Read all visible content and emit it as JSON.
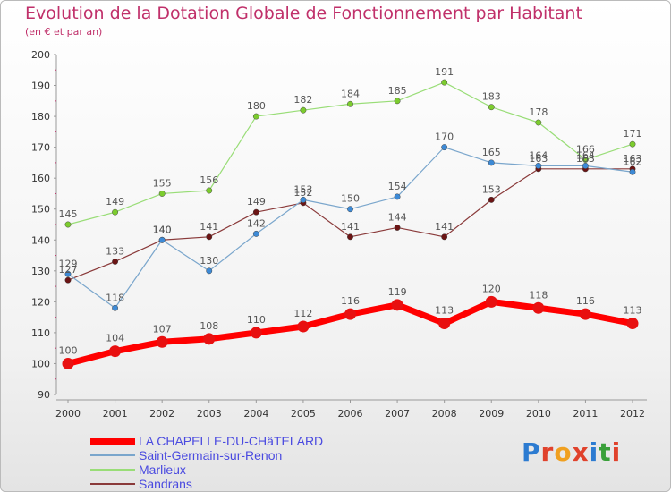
{
  "title": "Evolution de la Dotation Globale de Fonctionnement par Habitant",
  "subtitle": "(en € et par an)",
  "logo": {
    "text": "Proxiti",
    "colors": [
      "#2c7bd1",
      "#e0422c",
      "#f0a020",
      "#e0422c",
      "#2c7bd1",
      "#3aa03a",
      "#e0422c"
    ]
  },
  "chart_data": {
    "type": "line",
    "x": [
      "2000",
      "2001",
      "2002",
      "2003",
      "2004",
      "2005",
      "2006",
      "2007",
      "2008",
      "2009",
      "2010",
      "2011",
      "2012"
    ],
    "ylim": [
      90,
      200
    ],
    "yticks": [
      90,
      100,
      110,
      120,
      130,
      140,
      150,
      160,
      170,
      180,
      190,
      200
    ],
    "grid": false,
    "legend_position": "bottom-left",
    "series": [
      {
        "name": "LA CHAPELLE-DU-CHâTELARD",
        "color": "#ff0000",
        "width": 7,
        "marker_color": "#e81010",
        "values": [
          100,
          104,
          107,
          108,
          110,
          112,
          116,
          119,
          113,
          120,
          118,
          116,
          113
        ]
      },
      {
        "name": "Saint-Germain-sur-Renon",
        "color": "#7aa6cc",
        "width": 1.2,
        "marker_color": "#3d8ad6",
        "values": [
          129,
          118,
          140,
          130,
          142,
          153,
          150,
          154,
          170,
          165,
          164,
          164,
          162
        ]
      },
      {
        "name": "Marlieux",
        "color": "#99dd77",
        "width": 1.2,
        "marker_color": "#7ccc2e",
        "values": [
          145,
          149,
          155,
          156,
          180,
          182,
          184,
          185,
          191,
          183,
          178,
          166,
          171
        ]
      },
      {
        "name": "Sandrans",
        "color": "#8a3a3a",
        "width": 1.2,
        "marker_color": "#6b1414",
        "values": [
          127,
          133,
          140,
          141,
          149,
          152,
          141,
          144,
          141,
          153,
          163,
          163,
          163
        ]
      }
    ]
  }
}
